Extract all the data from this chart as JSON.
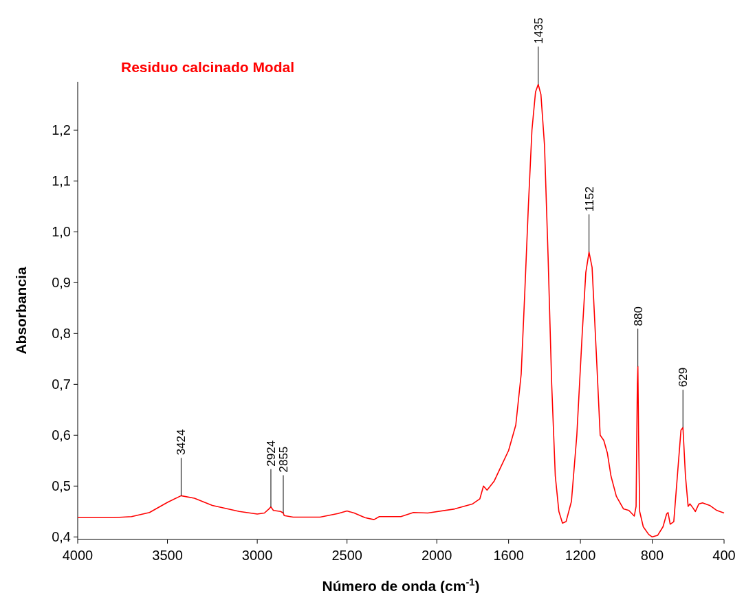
{
  "chart_data": {
    "type": "line",
    "title": "Residuo calcinado Modal",
    "xlabel": "Número de onda (cm$^{-1}$)",
    "ylabel": "Absorbancia",
    "xlim": [
      4000,
      400
    ],
    "xticks": [
      4000,
      3500,
      3000,
      2500,
      2000,
      1600,
      1200,
      800,
      400
    ],
    "ylim": [
      0.395,
      1.295
    ],
    "yticks": [
      {
        "value": 0.4,
        "label": "0,4"
      },
      {
        "value": 0.5,
        "label": "0,5"
      },
      {
        "value": 0.6,
        "label": "0,6"
      },
      {
        "value": 0.7,
        "label": "0,7"
      },
      {
        "value": 0.8,
        "label": "0,8"
      },
      {
        "value": 0.9,
        "label": "0,9"
      },
      {
        "value": 1.0,
        "label": "1,0"
      },
      {
        "value": 1.1,
        "label": "1,1"
      },
      {
        "value": 1.2,
        "label": "1,2"
      }
    ],
    "grid": false,
    "marker": "none",
    "line_style": "solid",
    "annotations": [
      {
        "text": "3424",
        "x": 3424,
        "y": 0.481
      },
      {
        "text": "2924",
        "x": 2924,
        "y": 0.459
      },
      {
        "text": "2855",
        "x": 2855,
        "y": 0.447
      },
      {
        "text": "1435",
        "x": 1435,
        "y": 1.29
      },
      {
        "text": "1152",
        "x": 1152,
        "y": 0.96
      },
      {
        "text": "880",
        "x": 880,
        "y": 0.735
      },
      {
        "text": "629",
        "x": 629,
        "y": 0.615
      }
    ],
    "series": [
      {
        "color": "#ff0000",
        "x": [
          4000,
          3800,
          3700,
          3600,
          3500,
          3424,
          3350,
          3250,
          3100,
          3000,
          2960,
          2935,
          2924,
          2910,
          2870,
          2855,
          2850,
          2800,
          2650,
          2550,
          2500,
          2460,
          2400,
          2350,
          2320,
          2200,
          2130,
          2050,
          1900,
          1800,
          1760,
          1740,
          1720,
          1680,
          1640,
          1600,
          1560,
          1530,
          1510,
          1490,
          1470,
          1450,
          1435,
          1420,
          1400,
          1380,
          1360,
          1340,
          1320,
          1300,
          1280,
          1250,
          1220,
          1190,
          1170,
          1152,
          1135,
          1110,
          1090,
          1070,
          1050,
          1030,
          1000,
          960,
          930,
          900,
          890,
          883,
          880,
          876,
          870,
          850,
          820,
          800,
          770,
          740,
          720,
          712,
          700,
          680,
          660,
          640,
          629,
          615,
          600,
          590,
          575,
          560,
          540,
          520,
          480,
          440,
          400
        ],
        "values": [
          0.438,
          0.438,
          0.44,
          0.448,
          0.468,
          0.481,
          0.476,
          0.462,
          0.45,
          0.445,
          0.447,
          0.455,
          0.459,
          0.452,
          0.45,
          0.447,
          0.442,
          0.439,
          0.439,
          0.446,
          0.451,
          0.447,
          0.438,
          0.434,
          0.44,
          0.44,
          0.448,
          0.447,
          0.455,
          0.465,
          0.475,
          0.5,
          0.492,
          0.51,
          0.54,
          0.57,
          0.62,
          0.72,
          0.88,
          1.05,
          1.2,
          1.275,
          1.29,
          1.27,
          1.17,
          0.95,
          0.7,
          0.52,
          0.45,
          0.427,
          0.43,
          0.47,
          0.6,
          0.8,
          0.92,
          0.96,
          0.93,
          0.75,
          0.6,
          0.59,
          0.565,
          0.52,
          0.48,
          0.455,
          0.452,
          0.441,
          0.46,
          0.7,
          0.735,
          0.6,
          0.45,
          0.42,
          0.405,
          0.4,
          0.403,
          0.42,
          0.445,
          0.448,
          0.425,
          0.43,
          0.52,
          0.61,
          0.615,
          0.52,
          0.46,
          0.465,
          0.458,
          0.45,
          0.465,
          0.467,
          0.462,
          0.452,
          0.447
        ]
      }
    ]
  }
}
